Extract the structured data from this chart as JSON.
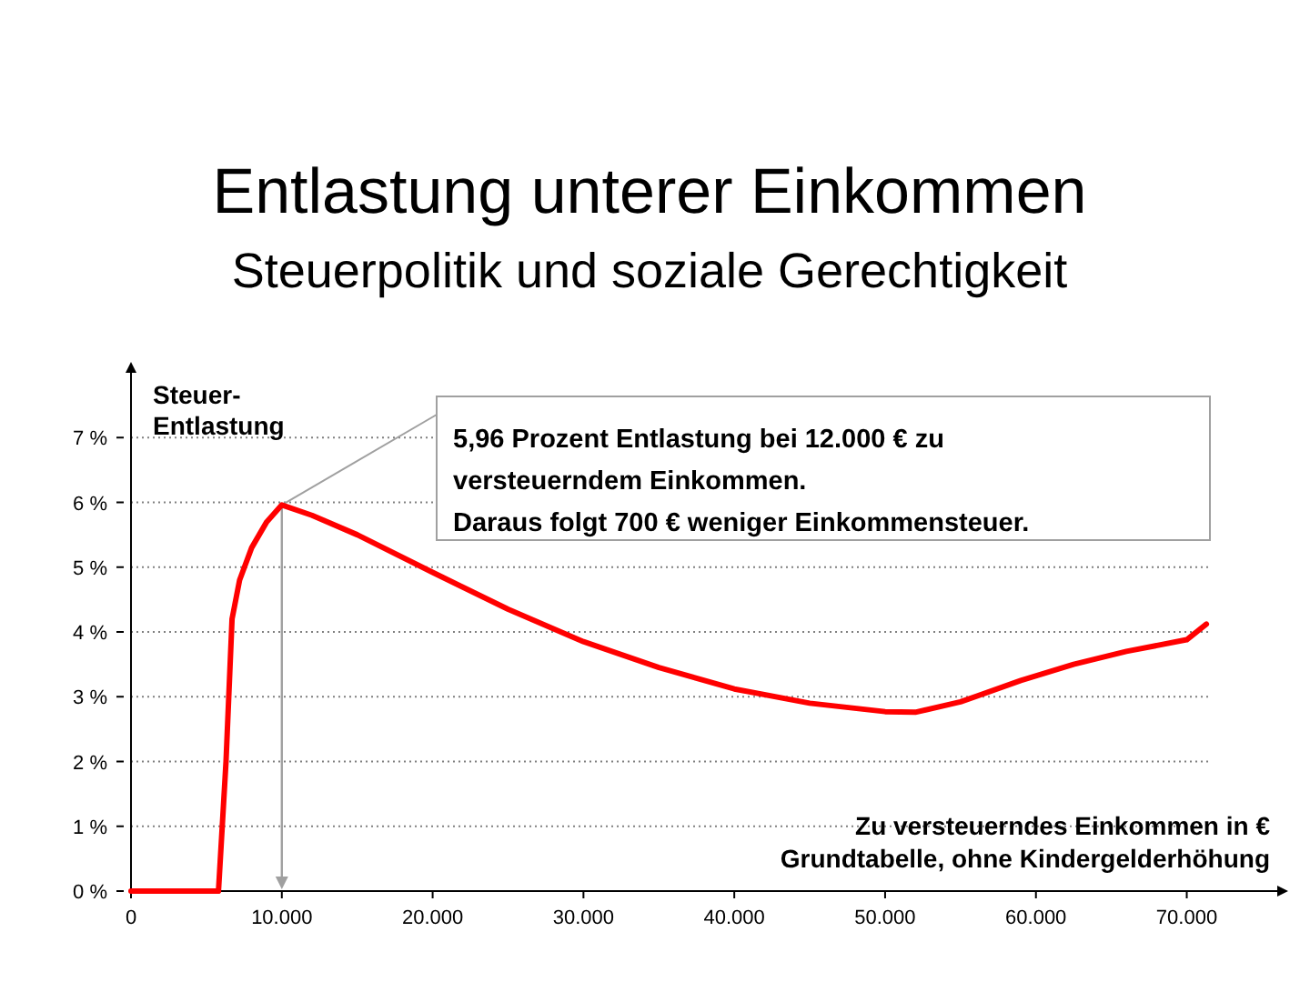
{
  "chart_data": {
    "type": "line",
    "title": "Entlastung unterer Einkommen",
    "subtitle": "Steuerpolitik und soziale Gerechtigkeit",
    "ylabel": "Steuer-\nEntlastung",
    "xlabel": "Zu versteuerndes Einkommen in €\nGrundtabelle, ohne Kindergelderhöhung",
    "x": [
      0,
      5800,
      6300,
      6700,
      7200,
      8000,
      9000,
      10000,
      12000,
      15000,
      20000,
      25000,
      30000,
      35000,
      40000,
      45000,
      50000,
      52000,
      55000,
      59000,
      62500,
      66000,
      70000,
      71300
    ],
    "series": [
      {
        "color": "#ff0000",
        "values": [
          0,
          0,
          2.0,
          4.2,
          4.8,
          5.3,
          5.7,
          5.96,
          5.8,
          5.5,
          4.92,
          4.35,
          3.85,
          3.45,
          3.12,
          2.9,
          2.77,
          2.76,
          2.92,
          3.25,
          3.5,
          3.7,
          3.88,
          4.12
        ]
      }
    ],
    "xlim": [
      0,
      76000
    ],
    "ylim": [
      0,
      8
    ],
    "xticks": [
      0,
      {
        "value": 10000,
        "label": "10.000"
      },
      {
        "value": 20000,
        "label": "20.000"
      },
      {
        "value": 30000,
        "label": "30.000"
      },
      {
        "value": 40000,
        "label": "40.000"
      },
      {
        "value": 50000,
        "label": "50.000"
      },
      {
        "value": 60000,
        "label": "60.000"
      },
      {
        "value": 70000,
        "label": "70.000"
      }
    ],
    "yticks": [
      {
        "value": 0,
        "label": "0 %"
      },
      {
        "value": 1,
        "label": "1 %"
      },
      {
        "value": 2,
        "label": "2 %"
      },
      {
        "value": 3,
        "label": "3 %"
      },
      {
        "value": 4,
        "label": "4 %"
      },
      {
        "value": 5,
        "label": "5 %"
      },
      {
        "value": 6,
        "label": "6 %"
      },
      {
        "value": 7,
        "label": "7 %"
      }
    ],
    "grid": "y",
    "marker": "none",
    "line_style": "solid",
    "annotations": [
      {
        "text": "5,96 Prozent Entlastung bei 12.000 € zu\nversteuerndem Einkommen.\nDaraus folgt 700 € weniger Einkommensteuer.",
        "x": 10000,
        "y": 5.96
      }
    ]
  }
}
